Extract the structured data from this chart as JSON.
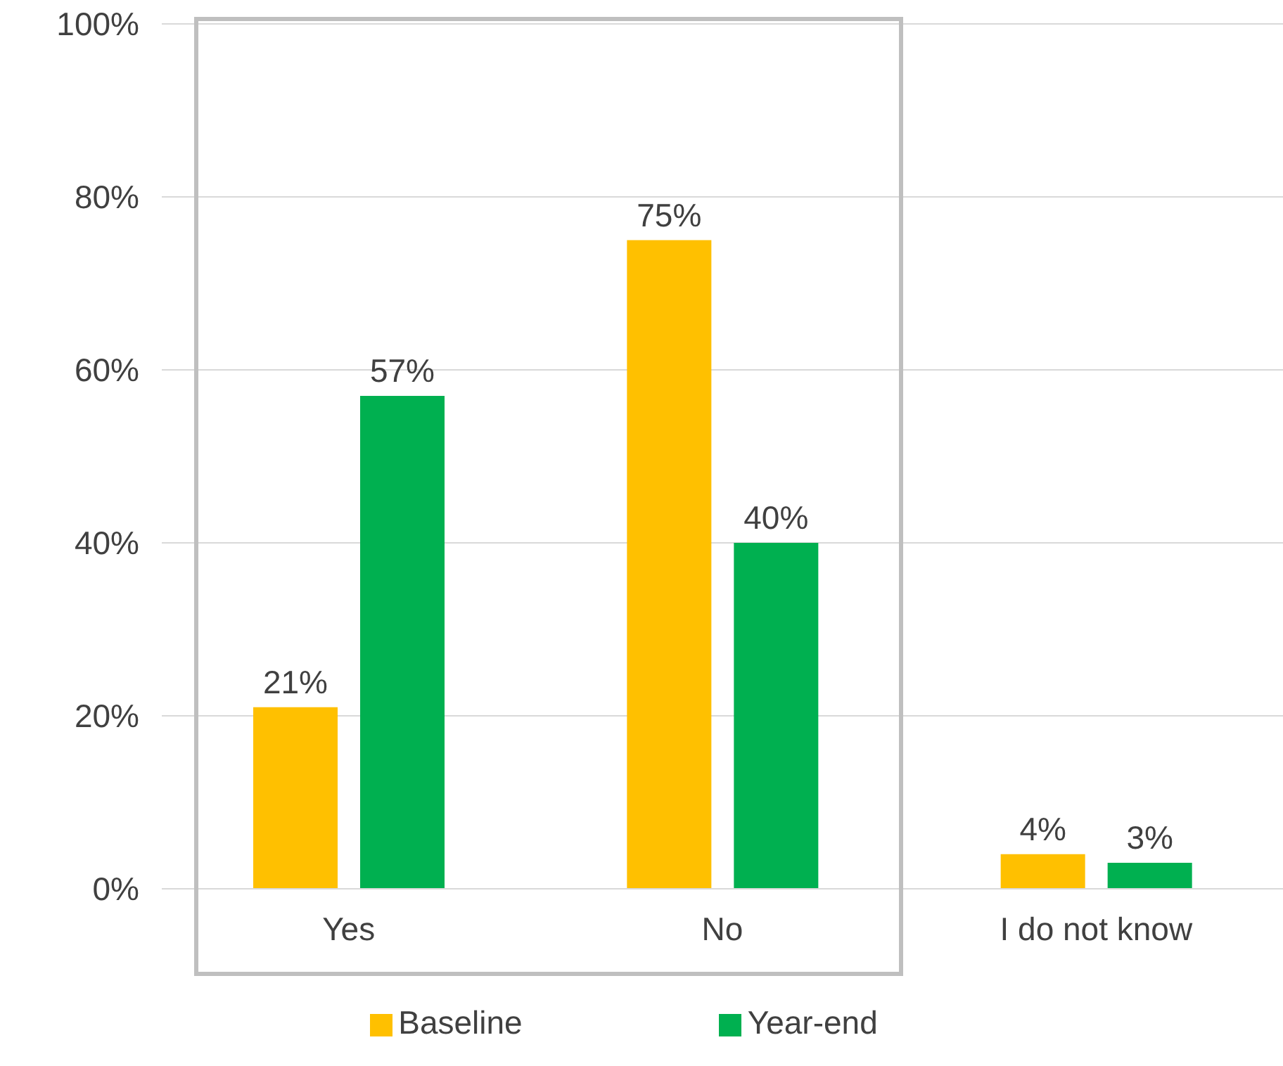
{
  "chart_data": {
    "type": "bar",
    "categories": [
      "Yes",
      "No",
      "I do not know"
    ],
    "series": [
      {
        "name": "Baseline",
        "color": "#ffc000",
        "values": [
          21,
          75,
          4
        ],
        "value_labels": [
          "21%",
          "75%",
          "4%"
        ]
      },
      {
        "name": "Year-end",
        "color": "#00b050",
        "values": [
          57,
          40,
          3
        ],
        "value_labels": [
          "57%",
          "40%",
          "3%"
        ]
      }
    ],
    "ylim": [
      0,
      100
    ],
    "yticks": [
      {
        "value": 0,
        "label": "0%"
      },
      {
        "value": 20,
        "label": "20%"
      },
      {
        "value": 40,
        "label": "40%"
      },
      {
        "value": 60,
        "label": "60%"
      },
      {
        "value": 80,
        "label": "80%"
      },
      {
        "value": 100,
        "label": "100%"
      }
    ],
    "grid": "y",
    "legend": "bottom"
  }
}
